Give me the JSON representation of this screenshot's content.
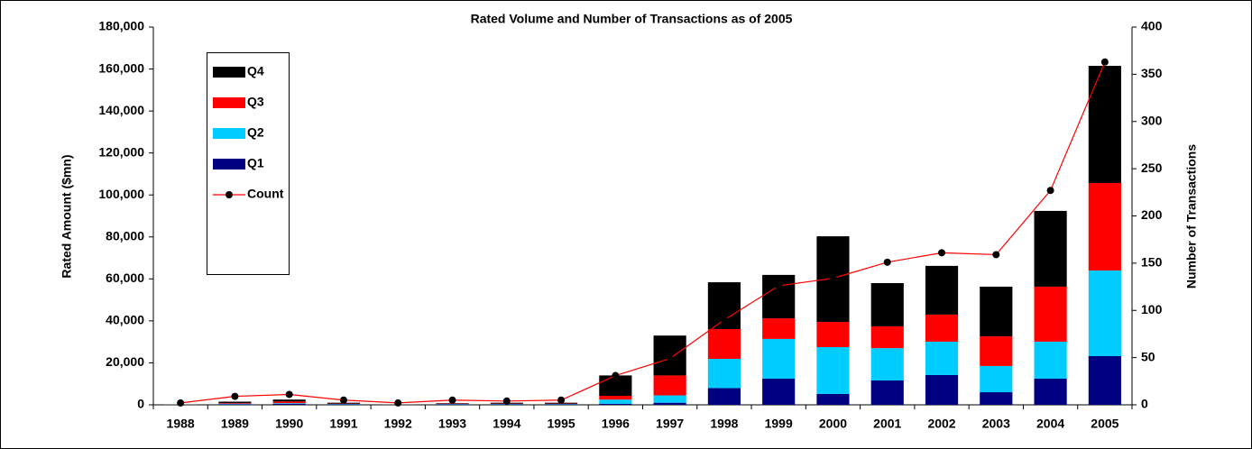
{
  "chart_data": {
    "type": "bar",
    "title": "Rated Volume and Number of Transactions as of 2005",
    "y_label": "Rated Amount ($mn)",
    "y2_label": "Number of Transactions",
    "stacked": true,
    "categories": [
      "1988",
      "1989",
      "1990",
      "1991",
      "1992",
      "1993",
      "1994",
      "1995",
      "1996",
      "1997",
      "1998",
      "1999",
      "2000",
      "2001",
      "2002",
      "2003",
      "2004",
      "2005"
    ],
    "series": [
      {
        "name": "Q1",
        "color": "#000080",
        "values": [
          50,
          300,
          500,
          200,
          50,
          200,
          200,
          200,
          500,
          1000,
          8000,
          12500,
          5200,
          11600,
          14200,
          6000,
          12500,
          23200
        ]
      },
      {
        "name": "Q2",
        "color": "#00ccff",
        "values": [
          50,
          200,
          300,
          200,
          50,
          200,
          200,
          200,
          2000,
          3500,
          13900,
          18900,
          22300,
          15400,
          15900,
          12500,
          17600,
          40800
        ]
      },
      {
        "name": "Q3",
        "color": "#ff0000",
        "values": [
          50,
          300,
          800,
          200,
          50,
          200,
          200,
          200,
          1800,
          9500,
          14200,
          9800,
          12000,
          10400,
          12900,
          14100,
          26200,
          41700
        ]
      },
      {
        "name": "Q4",
        "color": "#000000",
        "values": [
          50,
          700,
          900,
          400,
          50,
          200,
          400,
          400,
          9700,
          19000,
          22300,
          20700,
          40800,
          20600,
          23200,
          23700,
          36100,
          55800
        ]
      },
      {
        "name": "Count",
        "type": "line",
        "axis": "y2",
        "color": "#ff0000",
        "values": [
          2,
          9,
          11,
          5,
          2,
          5,
          4,
          5,
          31,
          49,
          90,
          126,
          134,
          151,
          161,
          159,
          227,
          363
        ]
      }
    ],
    "ylim": [
      0,
      180000
    ],
    "yticks": [
      0,
      {
        "value": 20000,
        "label": "20,000"
      },
      {
        "value": 40000,
        "label": "40,000"
      },
      {
        "value": 60000,
        "label": "60,000"
      },
      {
        "value": 80000,
        "label": "80,000"
      },
      {
        "value": 100000,
        "label": "100,000"
      },
      {
        "value": 120000,
        "label": "120,000"
      },
      {
        "value": 140000,
        "label": "140,000"
      },
      {
        "value": 160000,
        "label": "160,000"
      },
      {
        "value": 180000,
        "label": "180,000"
      }
    ],
    "y2lim": [
      0,
      400
    ],
    "y2ticks": [
      0,
      50,
      100,
      150,
      200,
      250,
      300,
      350,
      400
    ],
    "legend": "upper left"
  }
}
